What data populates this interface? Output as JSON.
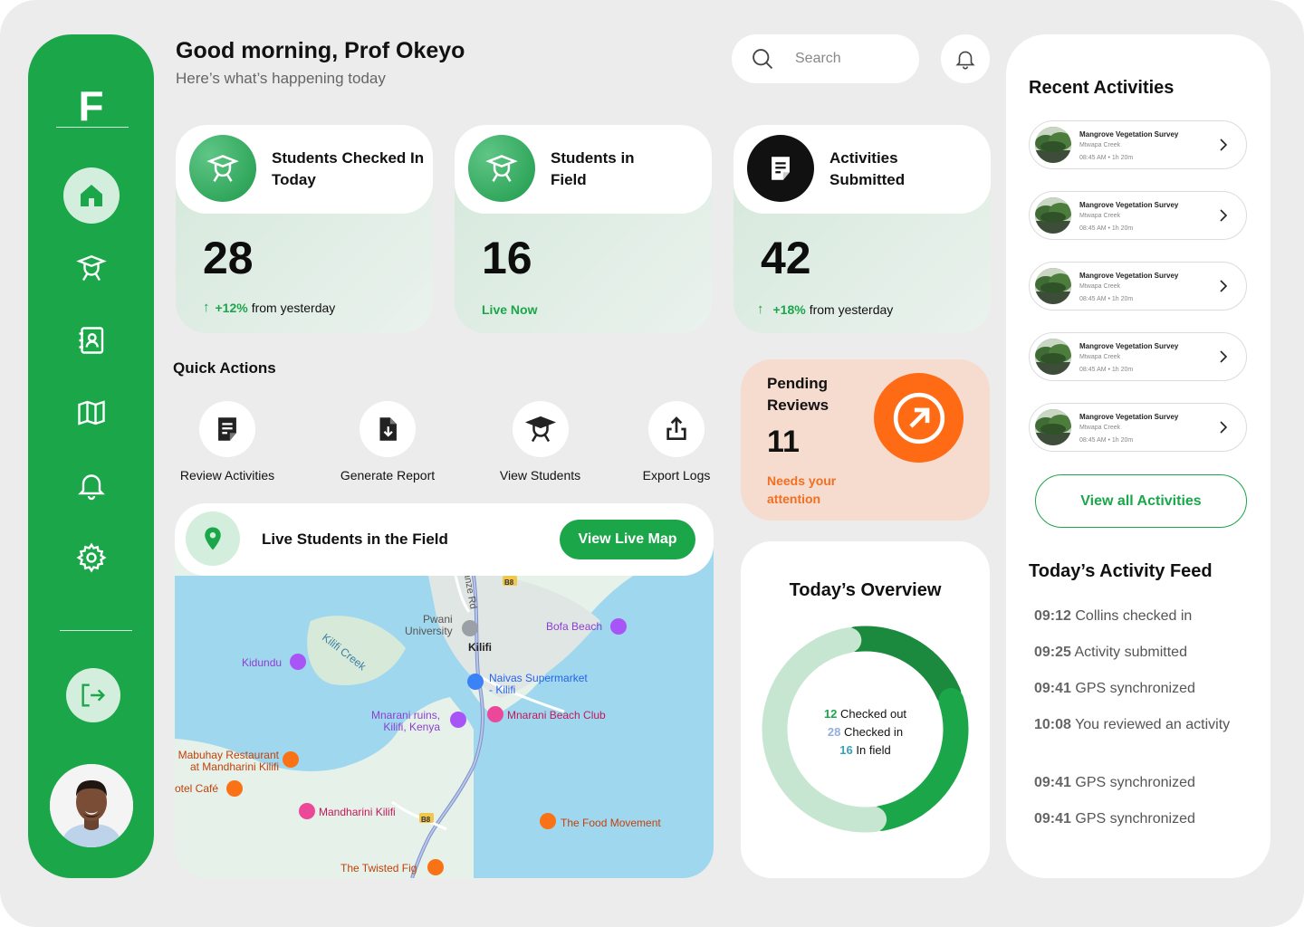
{
  "app": {
    "logo": "F"
  },
  "header": {
    "greeting": "Good morning, Prof Okeyo",
    "subtitle": "Here’s what’s happening today",
    "search_placeholder": "Search"
  },
  "stats": [
    {
      "title": "Students Checked In Today",
      "value": "28",
      "trend_pct": "+12%",
      "trend_text": "from yesterday",
      "icon": "graduate-icon"
    },
    {
      "title": "Students in Field",
      "value": "16",
      "status": "Live Now",
      "icon": "graduate-icon"
    },
    {
      "title": "Activities Submitted",
      "value": "42",
      "trend_pct": "+18%",
      "trend_text": "from yesterday",
      "icon": "document-icon"
    }
  ],
  "quick_actions": {
    "title": "Quick Actions",
    "items": [
      {
        "label": "Review Activities",
        "icon": "document-icon"
      },
      {
        "label": "Generate Report",
        "icon": "download-file-icon"
      },
      {
        "label": "View Students",
        "icon": "graduate-icon"
      },
      {
        "label": "Export Logs",
        "icon": "upload-icon"
      }
    ]
  },
  "map": {
    "title": "Live Students in the Field",
    "button": "View Live Map",
    "labels": {
      "pwani": "Pwani\nUniversity",
      "kilifi": "Kilifi",
      "bofa": "Bofa Beach",
      "kidundu": "Kidundu",
      "creek": "Kilifi Creek",
      "naivas": "Naivas Supermarket\n- Kilifi",
      "mnarani_ruins": "Mnarani ruins,\nKilifi, Kenya",
      "mnarani_beach": "Mnarani Beach Club",
      "mabuhay": "Mabuhay Restaurant\nat Mandharini Kilifi",
      "hotel": "otel Café",
      "mandharini": "Mandharini Kilifi",
      "food": "The Food Movement",
      "fig": "The Twisted Fig",
      "road_b8": "B8",
      "road_b8b": "B8",
      "road_rd": "anze Rd"
    }
  },
  "pending": {
    "title": "Pending Reviews",
    "count": "11",
    "note": "Needs your attention"
  },
  "overview": {
    "title": "Today’s Overview",
    "checked_out": 12,
    "checked_in": 28,
    "in_field": 16,
    "checked_out_label": "Checked out",
    "checked_in_label": "Checked in",
    "in_field_label": "In field",
    "colors": {
      "checked_out": "#1b8a3e",
      "checked_in": "#c6e6d1",
      "in_field": "#1ba64a"
    }
  },
  "recent": {
    "title": "Recent Activities",
    "items": [
      {
        "name": "Mangrove Vegetation Survey",
        "location": "Mtwapa Creek",
        "time": "08:45 AM • 1h 20m"
      },
      {
        "name": "Mangrove Vegetation Survey",
        "location": "Mtwapa Creek",
        "time": "08:45 AM • 1h 20m"
      },
      {
        "name": "Mangrove Vegetation Survey",
        "location": "Mtwapa Creek",
        "time": "08:45 AM • 1h 20m"
      },
      {
        "name": "Mangrove Vegetation Survey",
        "location": "Mtwapa Creek",
        "time": "08:45 AM • 1h 20m"
      },
      {
        "name": "Mangrove Vegetation Survey",
        "location": "Mtwapa Creek",
        "time": "08:45 AM • 1h 20m"
      }
    ],
    "view_all": "View all Activities"
  },
  "feed": {
    "title": "Today’s Activity Feed",
    "items": [
      {
        "time": "09:12",
        "text": "Collins checked in"
      },
      {
        "time": "09:25",
        "text": "Activity submitted"
      },
      {
        "time": "09:41",
        "text": "GPS synchronized"
      },
      {
        "time": "10:08",
        "text": "You reviewed an activity"
      },
      {
        "time": "09:41",
        "text": "GPS synchronized"
      },
      {
        "time": "09:41",
        "text": "GPS synchronized"
      }
    ]
  },
  "brand_colors": {
    "primary": "#1ba64a",
    "accent": "#fe6b14",
    "pending_bg": "#f6dbcf"
  }
}
